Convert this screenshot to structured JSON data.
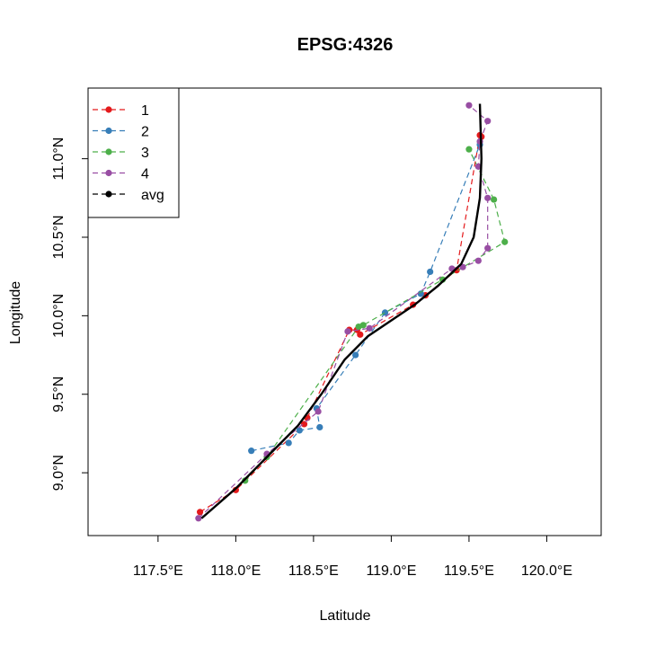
{
  "chart_data": {
    "type": "line",
    "title": "EPSG:4326",
    "xlabel": "Latitude",
    "ylabel": "Longitude",
    "xlim": [
      117.05,
      120.35
    ],
    "ylim": [
      8.6,
      11.45
    ],
    "xticks": [
      117.5,
      118.0,
      118.5,
      119.0,
      119.5,
      120.0
    ],
    "xtick_labels": [
      "117.5°E",
      "118.0°E",
      "118.5°E",
      "119.0°E",
      "119.5°E",
      "120.0°E"
    ],
    "yticks": [
      9.0,
      9.5,
      10.0,
      10.5,
      11.0
    ],
    "ytick_labels": [
      "9.0°N",
      "9.5°N",
      "10.0°N",
      "10.5°N",
      "11.0°N"
    ],
    "legend_position": "top-left",
    "series": [
      {
        "name": "1",
        "color": "#e41a1c",
        "style": "dashed",
        "points": [
          [
            117.77,
            8.75
          ],
          [
            118.0,
            8.89
          ],
          [
            118.44,
            9.31
          ],
          [
            118.46,
            9.35
          ],
          [
            118.73,
            9.91
          ],
          [
            118.78,
            9.91
          ],
          [
            118.8,
            9.88
          ],
          [
            119.14,
            10.07
          ],
          [
            119.22,
            10.13
          ],
          [
            119.42,
            10.29
          ],
          [
            119.57,
            11.15
          ],
          [
            119.58,
            11.14
          ]
        ]
      },
      {
        "name": "2",
        "color": "#377eb8",
        "style": "dashed",
        "points": [
          [
            118.1,
            9.14
          ],
          [
            118.34,
            9.19
          ],
          [
            118.41,
            9.27
          ],
          [
            118.54,
            9.29
          ],
          [
            118.52,
            9.41
          ],
          [
            118.77,
            9.75
          ],
          [
            118.96,
            10.02
          ],
          [
            119.19,
            10.14
          ],
          [
            119.25,
            10.28
          ],
          [
            119.57,
            11.09
          ]
        ]
      },
      {
        "name": "3",
        "color": "#4daf4a",
        "style": "dashed",
        "points": [
          [
            118.06,
            8.95
          ],
          [
            118.2,
            9.1
          ],
          [
            118.79,
            9.93
          ],
          [
            118.82,
            9.94
          ],
          [
            119.33,
            10.23
          ],
          [
            119.73,
            10.47
          ],
          [
            119.66,
            10.74
          ],
          [
            119.5,
            11.06
          ]
        ]
      },
      {
        "name": "4",
        "color": "#984ea3",
        "style": "dashed",
        "points": [
          [
            117.76,
            8.71
          ],
          [
            118.2,
            9.12
          ],
          [
            118.53,
            9.39
          ],
          [
            118.72,
            9.9
          ],
          [
            118.86,
            9.92
          ],
          [
            119.39,
            10.3
          ],
          [
            119.46,
            10.31
          ],
          [
            119.56,
            10.35
          ],
          [
            119.62,
            10.43
          ],
          [
            119.62,
            10.75
          ],
          [
            119.56,
            10.95
          ],
          [
            119.57,
            11.11
          ],
          [
            119.62,
            11.24
          ],
          [
            119.5,
            11.34
          ]
        ]
      }
    ],
    "average": {
      "name": "avg",
      "color": "#000000",
      "style": "solid",
      "points": [
        [
          117.78,
          8.71
        ],
        [
          118.0,
          8.9
        ],
        [
          118.2,
          9.1
        ],
        [
          118.4,
          9.3
        ],
        [
          118.55,
          9.5
        ],
        [
          118.7,
          9.72
        ],
        [
          118.85,
          9.87
        ],
        [
          119.0,
          9.97
        ],
        [
          119.15,
          10.07
        ],
        [
          119.3,
          10.19
        ],
        [
          119.45,
          10.33
        ],
        [
          119.53,
          10.5
        ],
        [
          119.57,
          10.75
        ],
        [
          119.58,
          11.0
        ],
        [
          119.57,
          11.35
        ]
      ]
    }
  }
}
